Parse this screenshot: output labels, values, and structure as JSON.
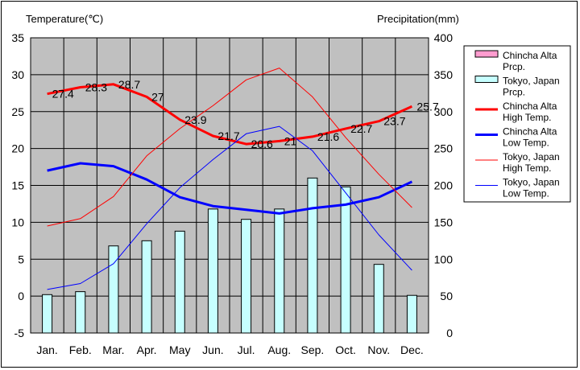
{
  "chart_data": {
    "type": "bar+line",
    "months": [
      "Jan.",
      "Feb.",
      "Mar.",
      "Apr.",
      "May",
      "Jun.",
      "Jul.",
      "Aug.",
      "Sep.",
      "Oct.",
      "Nov.",
      "Dec."
    ],
    "left_axis": {
      "label": "Temperature(℃)",
      "min": -5,
      "max": 35,
      "ticks": [
        "35",
        "30",
        "25",
        "20",
        "15",
        "10",
        "5",
        "0",
        "-5"
      ]
    },
    "right_axis": {
      "label": "Precipitation(mm)",
      "min": 0,
      "max": 400,
      "ticks": [
        "400",
        "350",
        "300",
        "250",
        "200",
        "150",
        "100",
        "50",
        "0"
      ]
    },
    "series": [
      {
        "name": "Chincha Alta Prcp.",
        "kind": "bar",
        "axis": "right",
        "color": "#ff9ccf",
        "values": [
          0,
          0,
          0,
          0,
          0,
          0,
          0,
          0,
          0,
          0,
          0,
          0
        ]
      },
      {
        "name": "Tokyo, Japan Prcp.",
        "kind": "bar",
        "axis": "right",
        "color": "#c6ffff",
        "values": [
          52,
          56,
          118,
          125,
          138,
          168,
          154,
          168,
          210,
          198,
          93,
          51
        ]
      },
      {
        "name": "Chincha Alta High Temp.",
        "kind": "line",
        "axis": "left",
        "color": "#ff0000",
        "width": 3,
        "values": [
          27.4,
          28.3,
          28.7,
          27,
          23.9,
          21.7,
          20.6,
          21,
          21.6,
          22.7,
          23.7,
          25.7
        ],
        "labels": [
          "27.4",
          "28.3",
          "28.7",
          "27",
          "23.9",
          "21.7",
          "20.6",
          "21",
          "21.6",
          "22.7",
          "23.7",
          "25.7"
        ]
      },
      {
        "name": "Chincha Alta Low Temp.",
        "kind": "line",
        "axis": "left",
        "color": "#0000ff",
        "width": 3,
        "values": [
          17,
          18,
          17.6,
          15.8,
          13.4,
          12.2,
          11.7,
          11.2,
          11.9,
          12.4,
          13.4,
          15.5
        ]
      },
      {
        "name": "Tokyo, Japan High Temp.",
        "kind": "line",
        "axis": "left",
        "color": "#ff0000",
        "width": 1,
        "values": [
          9.5,
          10.5,
          13.5,
          19,
          22.7,
          25.8,
          29.3,
          30.9,
          27,
          21.5,
          16.5,
          12
        ]
      },
      {
        "name": "Tokyo, Japan Low Temp.",
        "kind": "line",
        "axis": "left",
        "color": "#0000ff",
        "width": 1,
        "values": [
          0.9,
          1.7,
          4.4,
          9.8,
          14.7,
          18.5,
          22,
          23,
          19.7,
          14,
          8.3,
          3.5
        ]
      }
    ],
    "legend": {
      "position": "right",
      "entries": [
        {
          "lines": [
            "Chincha Alta",
            "Prcp."
          ]
        },
        {
          "lines": [
            "Tokyo, Japan",
            "Prcp."
          ]
        },
        {
          "lines": [
            "Chincha Alta",
            "High Temp."
          ]
        },
        {
          "lines": [
            "Chincha Alta",
            "Low Temp."
          ]
        },
        {
          "lines": [
            "Tokyo, Japan",
            "High Temp."
          ]
        },
        {
          "lines": [
            "Tokyo, Japan",
            "Low Temp."
          ]
        }
      ]
    },
    "plot_background": "#c0c0c0",
    "grid": true
  }
}
